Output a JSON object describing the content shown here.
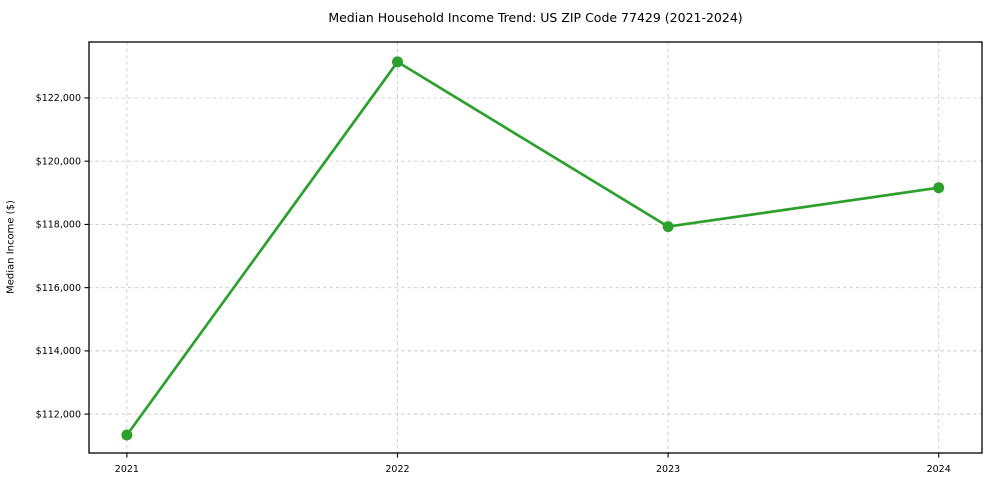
{
  "chart_data": {
    "type": "line",
    "title": "Median Household Income Trend: US ZIP Code 77429 (2021-2024)",
    "xlabel": "",
    "ylabel": "Median Income ($)",
    "x": [
      2021,
      2022,
      2023,
      2024
    ],
    "xtick_labels": [
      "2021",
      "2022",
      "2023",
      "2024"
    ],
    "values": [
      111340,
      123140,
      117930,
      119160
    ],
    "yticks": [
      112000,
      114000,
      116000,
      118000,
      120000,
      122000
    ],
    "ytick_labels": [
      "$112,000",
      "$114,000",
      "$116,000",
      "$118,000",
      "$120,000",
      "$122,000"
    ],
    "xlim": [
      2020.86,
      2024.16
    ],
    "ylim": [
      110770,
      123770
    ],
    "grid": true,
    "grid_style": "dashed",
    "legend": false,
    "marker": "circle",
    "colors": {
      "line": "#2ca02c",
      "marker": "#2ca02c",
      "grid": "#cccccc",
      "spine": "#000000",
      "text": "#000000",
      "background": "#ffffff"
    }
  }
}
